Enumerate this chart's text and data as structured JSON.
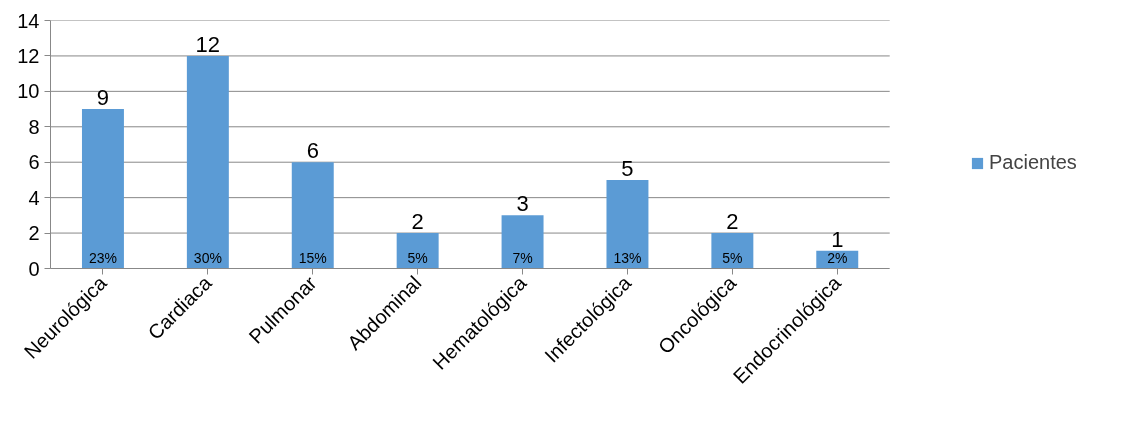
{
  "chart_data": {
    "type": "bar",
    "categories": [
      "Neurológica",
      "Cardiaca",
      "Pulmonar",
      "Abdominal",
      "Hematológica",
      "Infectológica",
      "Oncológica",
      "Endocrinológica"
    ],
    "series": [
      {
        "name": "Pacientes",
        "color": "#5b9bd5",
        "values": [
          9,
          12,
          6,
          2,
          3,
          5,
          2,
          1
        ]
      }
    ],
    "ylim": [
      0,
      14
    ],
    "yticks": [
      0,
      2,
      4,
      6,
      8,
      10,
      12,
      14
    ],
    "grid": "y",
    "legend": "right",
    "data_labels": true,
    "annotations": [
      "23%",
      "30%",
      "15%",
      "5%",
      "7%",
      "13%",
      "5%",
      "2%"
    ]
  }
}
